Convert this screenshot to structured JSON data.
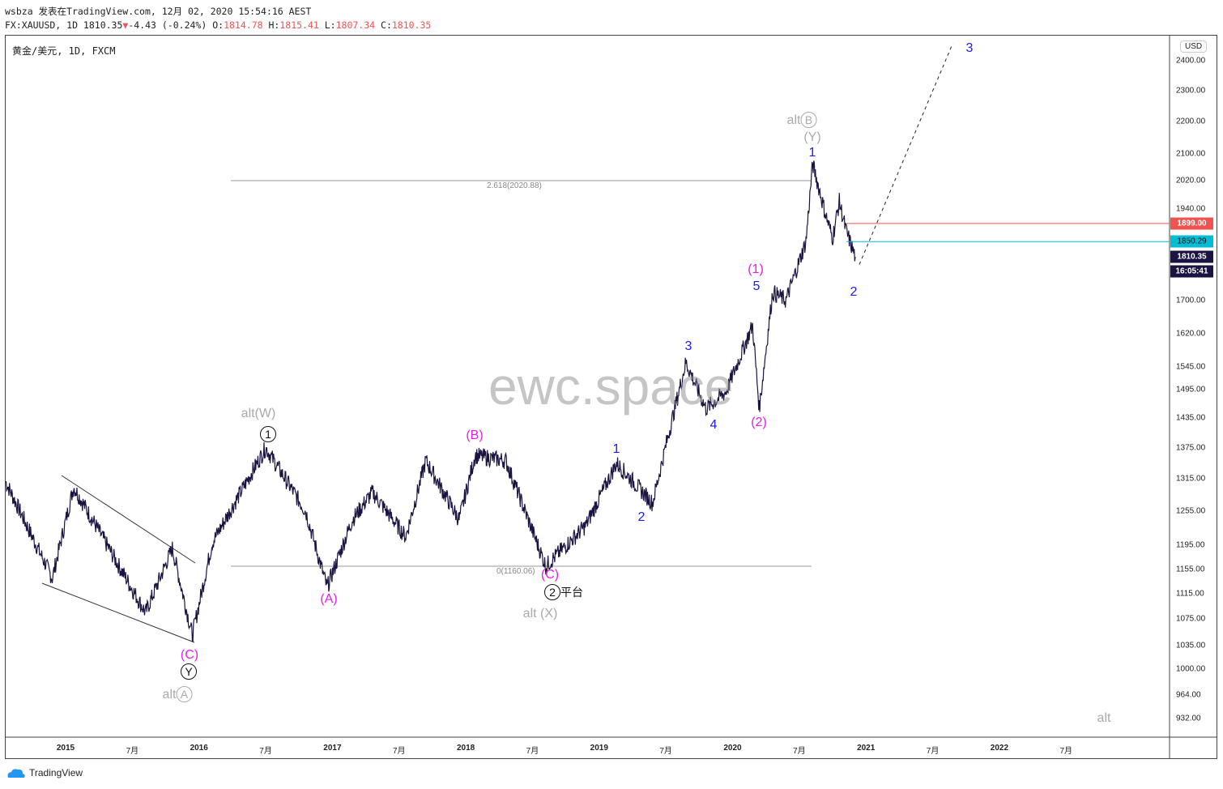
{
  "header": {
    "line1": "wsbza 发表在TradingView.com, 12月 02, 2020 15:54:16 AEST",
    "symbol": "FX:XAUUSD, 1D 1810.35",
    "change": "-4.43 (-0.24%)",
    "o_label": "O:",
    "o": "1814.78",
    "h_label": "H:",
    "h": "1815.41",
    "l_label": "L:",
    "l": "1807.34",
    "c_label": "C:",
    "c": "1810.35"
  },
  "legend": "黄金/美元, 1D, FXCM",
  "currency": "USD",
  "watermark": "ewc.space",
  "footer": "TradingView",
  "price_tags": {
    "resistance": "1899.00",
    "support": "1850.29",
    "last": "1810.35",
    "countdown": "16:05:41"
  },
  "colors": {
    "price": "#1b1442",
    "resistance": "#f05350",
    "support": "#00bcd4",
    "wave_blue": "#1a1af0",
    "wave_magenta": "#e81ee8",
    "alt_grey": "#aaaaaa"
  },
  "fib": {
    "top": "2.618(2020.88)",
    "bottom": "0(1160.06)"
  },
  "labels": {
    "altW": "alt(W)",
    "one_c": "1",
    "B": "(B)",
    "A": "(A)",
    "C1": "(C)",
    "Y": "Y",
    "altA_txt": "alt",
    "altA": "A",
    "C2": "(C)",
    "two_c": "2",
    "flat": "平台",
    "altX": "alt (X)",
    "w1a": "1",
    "w2a": "2",
    "w3a": "3",
    "w4a": "4",
    "w5a": "5",
    "P1": "(1)",
    "P2": "(2)",
    "altB_txt": "alt",
    "altB": "B",
    "Yg": "(Y)",
    "w1b": "1",
    "w2b": "2",
    "w3b": "3",
    "alt_br": "alt"
  },
  "chart_data": {
    "type": "line",
    "title": "黄金/美元, 1D, FXCM",
    "xlabel": "",
    "ylabel": "USD",
    "yscale": "log",
    "ylim": [
      900,
      2480
    ],
    "xlim": [
      2014.55,
      2022.6
    ],
    "yticks": [
      "2400.00",
      "2300.00",
      "2200.00",
      "2100.00",
      "2020.00",
      "1940.00",
      "1700.00",
      "1620.00",
      "1545.00",
      "1495.00",
      "1435.00",
      "1375.00",
      "1315.00",
      "1255.00",
      "1195.00",
      "1155.00",
      "1115.00",
      "1075.00",
      "1035.00",
      "1000.00",
      "964.00",
      "932.00"
    ],
    "xticks": [
      {
        "t": 2015,
        "l": "2015"
      },
      {
        "t": 2015.5,
        "l": "7月"
      },
      {
        "t": 2016,
        "l": "2016"
      },
      {
        "t": 2016.5,
        "l": "7月"
      },
      {
        "t": 2017,
        "l": "2017"
      },
      {
        "t": 2017.5,
        "l": "7月"
      },
      {
        "t": 2018,
        "l": "2018"
      },
      {
        "t": 2018.5,
        "l": "7月"
      },
      {
        "t": 2019,
        "l": "2019"
      },
      {
        "t": 2019.5,
        "l": "7月"
      },
      {
        "t": 2020,
        "l": "2020"
      },
      {
        "t": 2020.5,
        "l": "7月"
      },
      {
        "t": 2021,
        "l": "2021"
      },
      {
        "t": 2021.5,
        "l": "7月"
      },
      {
        "t": 2022,
        "l": "2022"
      },
      {
        "t": 2022.5,
        "l": "7月"
      }
    ],
    "series": [
      {
        "name": "XAUUSD",
        "x": [
          2014.55,
          2014.9,
          2015.06,
          2015.4,
          2015.6,
          2015.8,
          2015.95,
          2016.1,
          2016.5,
          2016.8,
          2016.96,
          2017.15,
          2017.3,
          2017.55,
          2017.7,
          2017.95,
          2018.07,
          2018.3,
          2018.6,
          2018.9,
          2019.13,
          2019.4,
          2019.5,
          2019.65,
          2019.8,
          2019.95,
          2020.15,
          2020.2,
          2020.3,
          2020.4,
          2020.55,
          2020.6,
          2020.7,
          2020.75,
          2020.8,
          2020.85,
          2020.92
        ],
        "y": [
          1310,
          1140,
          1300,
          1160,
          1085,
          1190,
          1050,
          1200,
          1375,
          1255,
          1125,
          1240,
          1290,
          1210,
          1350,
          1240,
          1360,
          1350,
          1160,
          1230,
          1345,
          1270,
          1380,
          1555,
          1455,
          1490,
          1640,
          1455,
          1720,
          1700,
          1850,
          2070,
          1920,
          1860,
          1960,
          1880,
          1810
        ]
      }
    ],
    "hlines": [
      {
        "name": "resistance",
        "y": 1899.0
      },
      {
        "name": "support",
        "y": 1850.29
      }
    ],
    "projection": {
      "from": [
        2020.95,
        1790
      ],
      "to": [
        2021.65,
        2460
      ]
    }
  }
}
